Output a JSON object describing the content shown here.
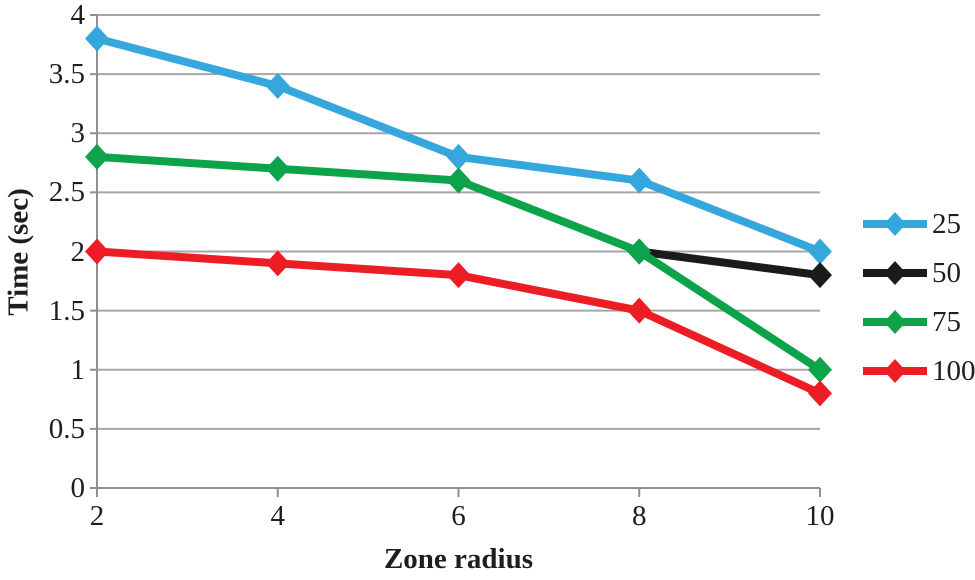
{
  "chart_data": {
    "type": "line",
    "title": "",
    "xlabel": "Zone radius",
    "ylabel": "Time (sec)",
    "x": [
      2,
      4,
      6,
      8,
      10
    ],
    "xtick_labels": [
      "2",
      "4",
      "6",
      "8",
      "10"
    ],
    "ylim": [
      0,
      4
    ],
    "ytick_step": 0.5,
    "ytick_labels": [
      "0",
      "0.5",
      "1",
      "1.5",
      "2",
      "2.5",
      "3",
      "3.5",
      "4"
    ],
    "grid": "horizontal",
    "legend_position": "right",
    "marker": "diamond",
    "series": [
      {
        "name": "25",
        "color": "#35A7DC",
        "values": [
          3.8,
          3.4,
          2.8,
          2.6,
          2.0
        ]
      },
      {
        "name": "50",
        "color": "#1B1B1B",
        "values": [
          null,
          null,
          null,
          2.0,
          1.8
        ]
      },
      {
        "name": "75",
        "color": "#0DA34A",
        "values": [
          2.8,
          2.7,
          2.6,
          2.0,
          1.0
        ]
      },
      {
        "name": "100",
        "color": "#EC1D25",
        "values": [
          2.0,
          1.9,
          1.8,
          1.5,
          0.8
        ]
      }
    ],
    "colors": {
      "gridline": "#A6A6A6",
      "axis": "#8F8F8F",
      "text": "#1E1E1E",
      "background": "#FFFFFF"
    }
  }
}
